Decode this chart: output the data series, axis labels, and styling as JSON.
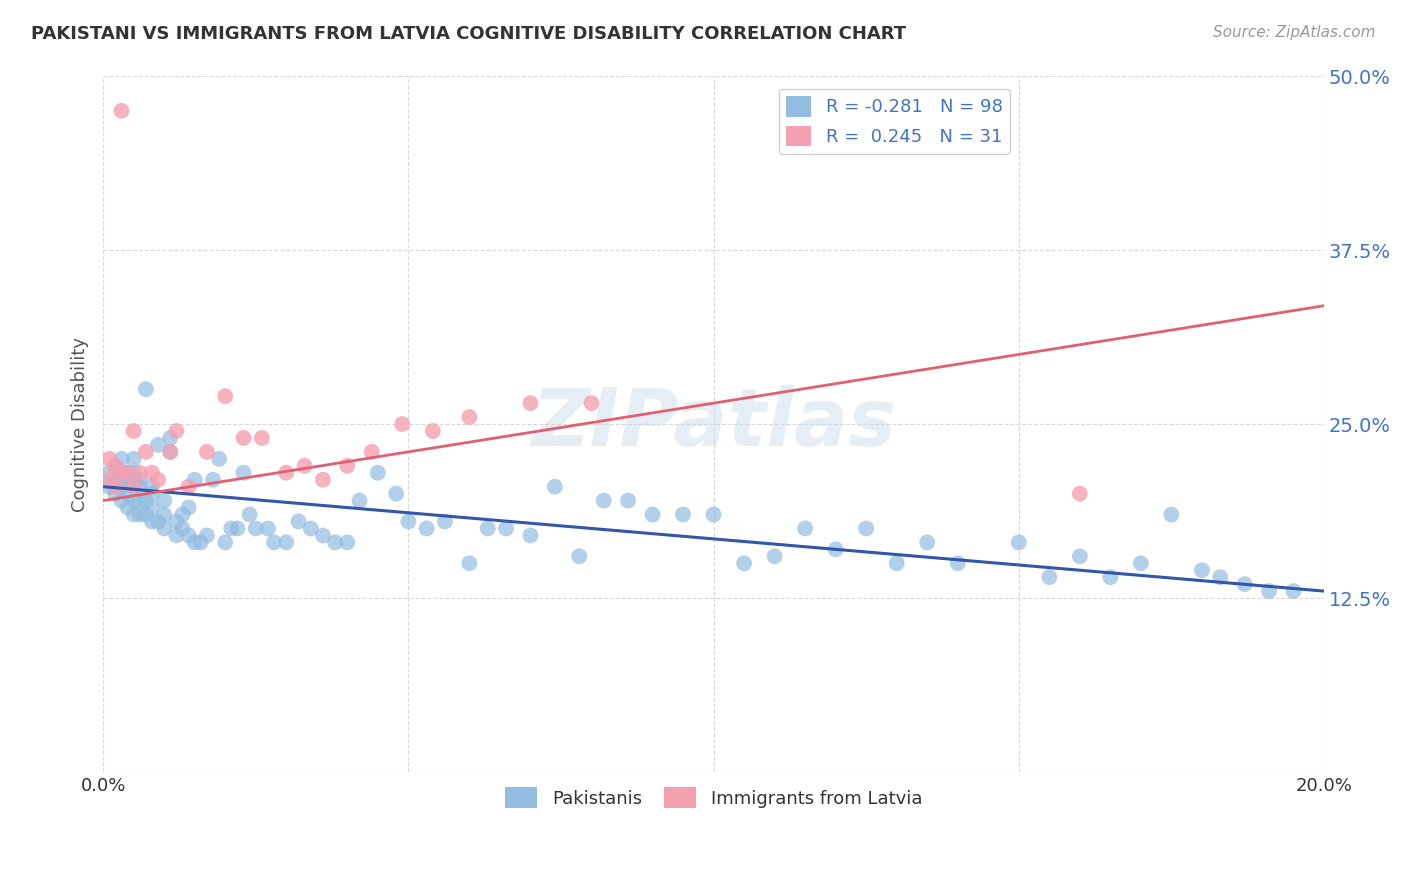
{
  "title": "PAKISTANI VS IMMIGRANTS FROM LATVIA COGNITIVE DISABILITY CORRELATION CHART",
  "source": "Source: ZipAtlas.com",
  "ylabel": "Cognitive Disability",
  "x_min": 0.0,
  "x_max": 0.2,
  "y_min": 0.0,
  "y_max": 0.5,
  "x_ticks": [
    0.0,
    0.05,
    0.1,
    0.15,
    0.2
  ],
  "y_ticks": [
    0.0,
    0.125,
    0.25,
    0.375,
    0.5
  ],
  "color_blue": "#92bce0",
  "color_pink": "#f4a0b0",
  "color_blue_dark": "#3355aa",
  "color_pink_line": "#e06070",
  "color_blue_text": "#4472c4",
  "watermark": "ZIPatlas",
  "pakistanis_x": [
    0.001,
    0.001,
    0.002,
    0.002,
    0.002,
    0.003,
    0.003,
    0.003,
    0.003,
    0.004,
    0.004,
    0.004,
    0.004,
    0.005,
    0.005,
    0.005,
    0.005,
    0.005,
    0.006,
    0.006,
    0.006,
    0.006,
    0.007,
    0.007,
    0.007,
    0.008,
    0.008,
    0.008,
    0.008,
    0.009,
    0.009,
    0.01,
    0.01,
    0.01,
    0.011,
    0.011,
    0.012,
    0.012,
    0.013,
    0.013,
    0.014,
    0.014,
    0.015,
    0.015,
    0.016,
    0.017,
    0.018,
    0.019,
    0.02,
    0.021,
    0.022,
    0.023,
    0.024,
    0.025,
    0.027,
    0.028,
    0.03,
    0.032,
    0.034,
    0.036,
    0.038,
    0.04,
    0.042,
    0.045,
    0.048,
    0.05,
    0.053,
    0.056,
    0.06,
    0.063,
    0.066,
    0.07,
    0.074,
    0.078,
    0.082,
    0.086,
    0.09,
    0.095,
    0.1,
    0.105,
    0.11,
    0.115,
    0.12,
    0.125,
    0.13,
    0.135,
    0.14,
    0.15,
    0.155,
    0.16,
    0.165,
    0.17,
    0.175,
    0.18,
    0.183,
    0.187,
    0.191,
    0.195
  ],
  "pakistanis_y": [
    0.205,
    0.215,
    0.2,
    0.21,
    0.22,
    0.195,
    0.205,
    0.215,
    0.225,
    0.19,
    0.2,
    0.21,
    0.215,
    0.185,
    0.195,
    0.205,
    0.215,
    0.225,
    0.185,
    0.195,
    0.205,
    0.21,
    0.185,
    0.195,
    0.275,
    0.18,
    0.19,
    0.2,
    0.205,
    0.18,
    0.235,
    0.175,
    0.185,
    0.195,
    0.23,
    0.24,
    0.17,
    0.18,
    0.175,
    0.185,
    0.17,
    0.19,
    0.165,
    0.21,
    0.165,
    0.17,
    0.21,
    0.225,
    0.165,
    0.175,
    0.175,
    0.215,
    0.185,
    0.175,
    0.175,
    0.165,
    0.165,
    0.18,
    0.175,
    0.17,
    0.165,
    0.165,
    0.195,
    0.215,
    0.2,
    0.18,
    0.175,
    0.18,
    0.15,
    0.175,
    0.175,
    0.17,
    0.205,
    0.155,
    0.195,
    0.195,
    0.185,
    0.185,
    0.185,
    0.15,
    0.155,
    0.175,
    0.16,
    0.175,
    0.15,
    0.165,
    0.15,
    0.165,
    0.14,
    0.155,
    0.14,
    0.15,
    0.185,
    0.145,
    0.14,
    0.135,
    0.13,
    0.13
  ],
  "latvia_x": [
    0.001,
    0.001,
    0.002,
    0.002,
    0.003,
    0.004,
    0.005,
    0.005,
    0.006,
    0.007,
    0.008,
    0.009,
    0.011,
    0.012,
    0.014,
    0.017,
    0.02,
    0.023,
    0.026,
    0.03,
    0.033,
    0.036,
    0.04,
    0.044,
    0.049,
    0.054,
    0.06,
    0.07,
    0.08,
    0.16,
    0.003
  ],
  "latvia_y": [
    0.21,
    0.225,
    0.205,
    0.22,
    0.215,
    0.215,
    0.205,
    0.245,
    0.215,
    0.23,
    0.215,
    0.21,
    0.23,
    0.245,
    0.205,
    0.23,
    0.27,
    0.24,
    0.24,
    0.215,
    0.22,
    0.21,
    0.22,
    0.23,
    0.25,
    0.245,
    0.255,
    0.265,
    0.265,
    0.2,
    0.475
  ],
  "blue_line_x": [
    0.0,
    0.2
  ],
  "blue_line_y": [
    0.205,
    0.13
  ],
  "pink_line_x": [
    0.0,
    0.2
  ],
  "pink_line_y": [
    0.195,
    0.335
  ],
  "background_color": "#ffffff",
  "grid_color": "#d8d8d8",
  "title_color": "#333333"
}
